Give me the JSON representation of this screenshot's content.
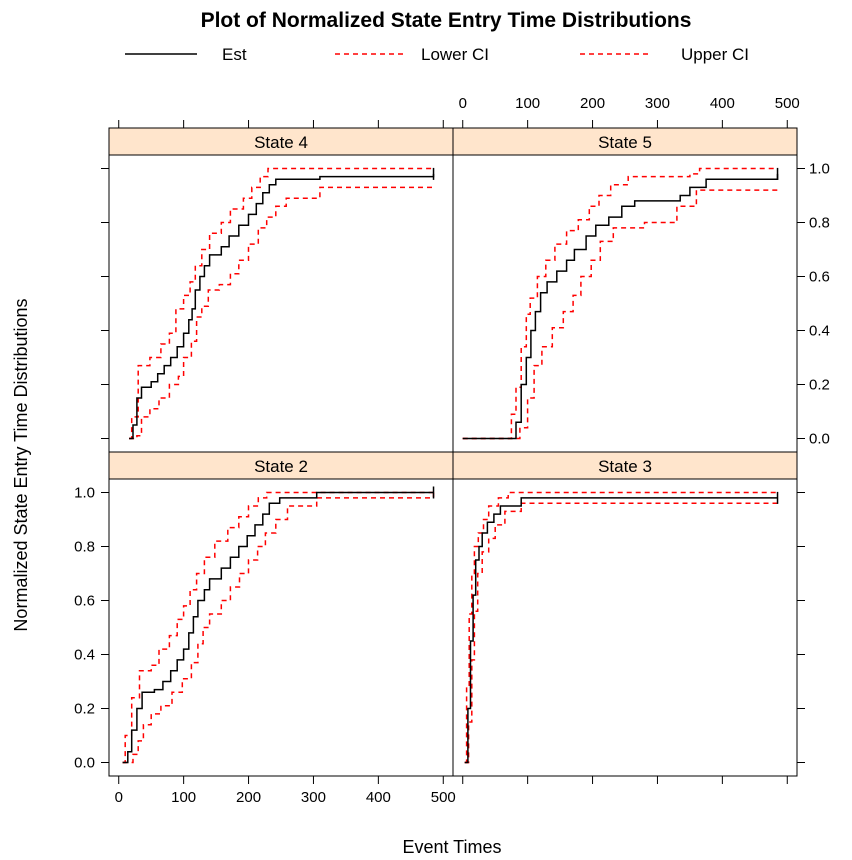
{
  "chart_data": {
    "type": "line",
    "title": "Plot of Normalized State Entry Time Distributions",
    "xlabel": "Event Times",
    "ylabel": "Normalized State Entry Time Distributions",
    "xlim": [
      -15,
      515
    ],
    "ylim": [
      -0.05,
      1.05
    ],
    "x_ticks": [
      0,
      100,
      200,
      300,
      400,
      500
    ],
    "x_tick_labels": [
      "0",
      "100",
      "200",
      "300",
      "400",
      "500"
    ],
    "y_ticks": [
      0.0,
      0.2,
      0.4,
      0.6,
      0.8,
      1.0
    ],
    "y_tick_labels": [
      "0.0",
      "0.2",
      "0.4",
      "0.6",
      "0.8",
      "1.0"
    ],
    "colors": {
      "est": "#000000",
      "ci": "#ff0000",
      "strip": "#ffe5cc"
    },
    "legend": [
      {
        "label": "Est",
        "color": "#000000",
        "style": "solid"
      },
      {
        "label": "Lower CI",
        "color": "#ff0000",
        "style": "dashed"
      },
      {
        "label": "Upper CI",
        "color": "#ff0000",
        "style": "dashed"
      }
    ],
    "panels": [
      {
        "name": "State 4",
        "est": [
          [
            16,
            0
          ],
          [
            22,
            0.05
          ],
          [
            28,
            0.15
          ],
          [
            35,
            0.19
          ],
          [
            50,
            0.21
          ],
          [
            60,
            0.24
          ],
          [
            70,
            0.27
          ],
          [
            80,
            0.3
          ],
          [
            90,
            0.34
          ],
          [
            100,
            0.39
          ],
          [
            108,
            0.44
          ],
          [
            113,
            0.48
          ],
          [
            118,
            0.55
          ],
          [
            125,
            0.6
          ],
          [
            132,
            0.64
          ],
          [
            140,
            0.68
          ],
          [
            158,
            0.71
          ],
          [
            170,
            0.75
          ],
          [
            185,
            0.79
          ],
          [
            200,
            0.83
          ],
          [
            212,
            0.87
          ],
          [
            222,
            0.91
          ],
          [
            232,
            0.94
          ],
          [
            242,
            0.96
          ],
          [
            260,
            0.96
          ],
          [
            310,
            0.97
          ],
          [
            485,
            0.98
          ]
        ],
        "lower": [
          [
            16,
            0
          ],
          [
            28,
            0.01
          ],
          [
            35,
            0.08
          ],
          [
            48,
            0.11
          ],
          [
            62,
            0.15
          ],
          [
            78,
            0.2
          ],
          [
            92,
            0.23
          ],
          [
            100,
            0.3
          ],
          [
            112,
            0.36
          ],
          [
            120,
            0.45
          ],
          [
            128,
            0.49
          ],
          [
            138,
            0.55
          ],
          [
            155,
            0.57
          ],
          [
            172,
            0.61
          ],
          [
            185,
            0.66
          ],
          [
            200,
            0.72
          ],
          [
            215,
            0.78
          ],
          [
            228,
            0.82
          ],
          [
            242,
            0.86
          ],
          [
            258,
            0.89
          ],
          [
            310,
            0.93
          ],
          [
            485,
            0.93
          ]
        ],
        "upper": [
          [
            16,
            0
          ],
          [
            20,
            0.08
          ],
          [
            30,
            0.27
          ],
          [
            48,
            0.3
          ],
          [
            65,
            0.35
          ],
          [
            78,
            0.39
          ],
          [
            88,
            0.48
          ],
          [
            100,
            0.53
          ],
          [
            110,
            0.58
          ],
          [
            118,
            0.64
          ],
          [
            128,
            0.7
          ],
          [
            140,
            0.76
          ],
          [
            158,
            0.8
          ],
          [
            172,
            0.85
          ],
          [
            192,
            0.89
          ],
          [
            205,
            0.93
          ],
          [
            218,
            0.97
          ],
          [
            230,
            1.0
          ],
          [
            485,
            1.0
          ]
        ]
      },
      {
        "name": "State 5",
        "est": [
          [
            0,
            0
          ],
          [
            70,
            0
          ],
          [
            82,
            0.06
          ],
          [
            90,
            0.2
          ],
          [
            98,
            0.3
          ],
          [
            105,
            0.4
          ],
          [
            112,
            0.47
          ],
          [
            120,
            0.54
          ],
          [
            130,
            0.58
          ],
          [
            145,
            0.62
          ],
          [
            160,
            0.66
          ],
          [
            172,
            0.7
          ],
          [
            190,
            0.75
          ],
          [
            205,
            0.79
          ],
          [
            225,
            0.82
          ],
          [
            245,
            0.86
          ],
          [
            265,
            0.88
          ],
          [
            300,
            0.88
          ],
          [
            335,
            0.9
          ],
          [
            350,
            0.93
          ],
          [
            375,
            0.96
          ],
          [
            485,
            0.98
          ]
        ],
        "lower": [
          [
            0,
            0
          ],
          [
            82,
            0
          ],
          [
            88,
            0.04
          ],
          [
            100,
            0.15
          ],
          [
            110,
            0.27
          ],
          [
            122,
            0.34
          ],
          [
            138,
            0.41
          ],
          [
            155,
            0.47
          ],
          [
            170,
            0.53
          ],
          [
            182,
            0.6
          ],
          [
            198,
            0.66
          ],
          [
            212,
            0.73
          ],
          [
            232,
            0.78
          ],
          [
            280,
            0.8
          ],
          [
            330,
            0.86
          ],
          [
            360,
            0.92
          ],
          [
            485,
            0.93
          ]
        ],
        "upper": [
          [
            0,
            0
          ],
          [
            68,
            0
          ],
          [
            75,
            0.09
          ],
          [
            82,
            0.19
          ],
          [
            90,
            0.34
          ],
          [
            98,
            0.46
          ],
          [
            104,
            0.52
          ],
          [
            115,
            0.6
          ],
          [
            128,
            0.66
          ],
          [
            142,
            0.72
          ],
          [
            160,
            0.77
          ],
          [
            178,
            0.81
          ],
          [
            195,
            0.86
          ],
          [
            210,
            0.9
          ],
          [
            228,
            0.94
          ],
          [
            255,
            0.97
          ],
          [
            350,
            0.98
          ],
          [
            365,
            1.0
          ],
          [
            485,
            1.0
          ]
        ]
      },
      {
        "name": "State 2",
        "est": [
          [
            6,
            0
          ],
          [
            14,
            0.04
          ],
          [
            20,
            0.12
          ],
          [
            28,
            0.2
          ],
          [
            36,
            0.26
          ],
          [
            55,
            0.27
          ],
          [
            68,
            0.3
          ],
          [
            80,
            0.34
          ],
          [
            90,
            0.38
          ],
          [
            100,
            0.42
          ],
          [
            108,
            0.48
          ],
          [
            115,
            0.54
          ],
          [
            122,
            0.6
          ],
          [
            132,
            0.64
          ],
          [
            140,
            0.68
          ],
          [
            158,
            0.72
          ],
          [
            172,
            0.76
          ],
          [
            185,
            0.8
          ],
          [
            198,
            0.84
          ],
          [
            210,
            0.88
          ],
          [
            222,
            0.92
          ],
          [
            232,
            0.96
          ],
          [
            248,
            0.98
          ],
          [
            305,
            1.0
          ],
          [
            485,
            1.0
          ]
        ],
        "lower": [
          [
            6,
            0
          ],
          [
            22,
            0.03
          ],
          [
            30,
            0.08
          ],
          [
            38,
            0.14
          ],
          [
            50,
            0.18
          ],
          [
            65,
            0.21
          ],
          [
            82,
            0.26
          ],
          [
            98,
            0.31
          ],
          [
            112,
            0.37
          ],
          [
            122,
            0.44
          ],
          [
            130,
            0.5
          ],
          [
            140,
            0.55
          ],
          [
            158,
            0.6
          ],
          [
            172,
            0.65
          ],
          [
            186,
            0.7
          ],
          [
            200,
            0.75
          ],
          [
            214,
            0.8
          ],
          [
            226,
            0.85
          ],
          [
            242,
            0.9
          ],
          [
            260,
            0.95
          ],
          [
            305,
            0.98
          ],
          [
            485,
            1.0
          ]
        ],
        "upper": [
          [
            6,
            0
          ],
          [
            10,
            0.1
          ],
          [
            20,
            0.24
          ],
          [
            32,
            0.34
          ],
          [
            50,
            0.36
          ],
          [
            62,
            0.42
          ],
          [
            78,
            0.47
          ],
          [
            90,
            0.53
          ],
          [
            100,
            0.58
          ],
          [
            110,
            0.64
          ],
          [
            120,
            0.7
          ],
          [
            132,
            0.76
          ],
          [
            148,
            0.82
          ],
          [
            168,
            0.87
          ],
          [
            185,
            0.91
          ],
          [
            200,
            0.95
          ],
          [
            215,
            0.98
          ],
          [
            228,
            1.0
          ],
          [
            485,
            1.0
          ]
        ]
      },
      {
        "name": "State 3",
        "est": [
          [
            3,
            0
          ],
          [
            8,
            0.2
          ],
          [
            12,
            0.45
          ],
          [
            16,
            0.62
          ],
          [
            20,
            0.75
          ],
          [
            25,
            0.8
          ],
          [
            30,
            0.85
          ],
          [
            38,
            0.89
          ],
          [
            48,
            0.92
          ],
          [
            58,
            0.95
          ],
          [
            90,
            0.98
          ],
          [
            485,
            0.98
          ]
        ],
        "lower": [
          [
            3,
            0
          ],
          [
            9,
            0.15
          ],
          [
            14,
            0.38
          ],
          [
            18,
            0.56
          ],
          [
            23,
            0.7
          ],
          [
            30,
            0.78
          ],
          [
            40,
            0.83
          ],
          [
            50,
            0.88
          ],
          [
            65,
            0.93
          ],
          [
            90,
            0.96
          ],
          [
            485,
            0.96
          ]
        ],
        "upper": [
          [
            3,
            0
          ],
          [
            6,
            0.28
          ],
          [
            10,
            0.55
          ],
          [
            14,
            0.7
          ],
          [
            18,
            0.8
          ],
          [
            24,
            0.85
          ],
          [
            32,
            0.9
          ],
          [
            40,
            0.95
          ],
          [
            55,
            0.98
          ],
          [
            70,
            1.0
          ],
          [
            485,
            1.0
          ]
        ]
      }
    ]
  }
}
